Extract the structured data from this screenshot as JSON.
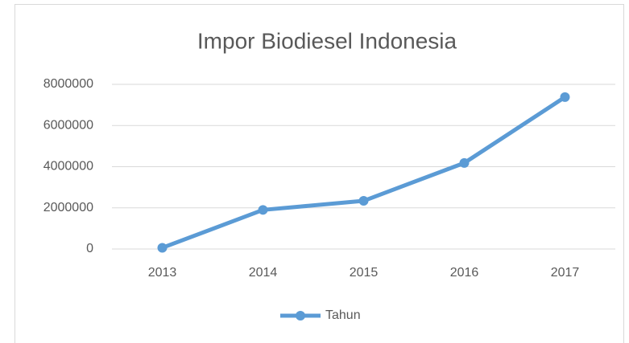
{
  "chart_data": {
    "type": "line",
    "title": "Impor Biodiesel Indonesia",
    "categories": [
      "2013",
      "2014",
      "2015",
      "2016",
      "2017"
    ],
    "series": [
      {
        "name": "Tahun",
        "color": "#5b9bd5",
        "values": [
          60000,
          1900000,
          2340000,
          4180000,
          7380000
        ]
      }
    ],
    "ylim": [
      0,
      8000000
    ],
    "yticks": [
      0,
      2000000,
      4000000,
      6000000,
      8000000
    ],
    "grid": true,
    "legend": "bottom"
  }
}
